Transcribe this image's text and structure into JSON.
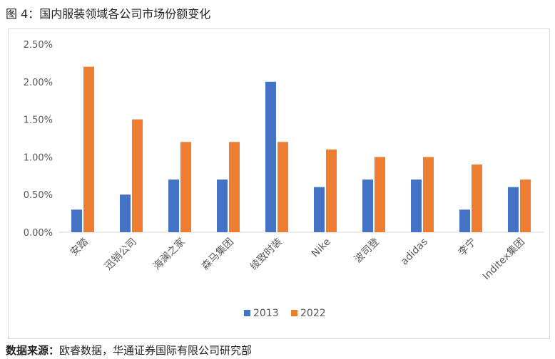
{
  "figure_title": "图 4：国内服装领域各公司市场份额变化",
  "source": {
    "label": "数据来源：",
    "text": "欧睿数据，华通证券国际有限公司研究部"
  },
  "chart_data": {
    "type": "bar",
    "title": "",
    "xlabel": "",
    "ylabel": "",
    "categories": [
      "安踏",
      "迅销公司",
      "海澜之家",
      "森马集团",
      "绫致时装",
      "Nike",
      "波司登",
      "adidas",
      "李宁",
      "Inditex集团"
    ],
    "series": [
      {
        "name": "2013",
        "color": "#4472c4",
        "values": [
          0.3,
          0.5,
          0.7,
          0.7,
          2.0,
          0.6,
          0.7,
          0.7,
          0.3,
          0.6
        ]
      },
      {
        "name": "2022",
        "color": "#ed7d31",
        "values": [
          2.2,
          1.5,
          1.2,
          1.2,
          1.2,
          1.1,
          1.0,
          1.0,
          0.9,
          0.7
        ]
      }
    ],
    "ylim": [
      0,
      2.5
    ],
    "yticks": [
      "0.00%",
      "0.50%",
      "1.00%",
      "1.50%",
      "2.00%",
      "2.50%"
    ],
    "ytick_values": [
      0,
      0.5,
      1.0,
      1.5,
      2.0,
      2.5
    ],
    "grid": false,
    "legend_position": "bottom"
  }
}
